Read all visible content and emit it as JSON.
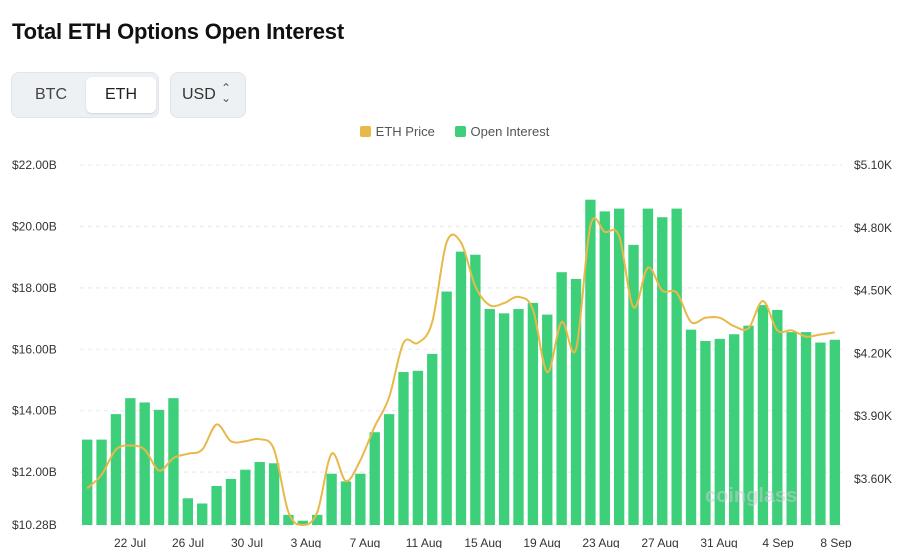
{
  "title": "Total ETH Options Open Interest",
  "toggle": {
    "options": [
      "BTC",
      "ETH"
    ],
    "selected": "ETH"
  },
  "currency_select": {
    "value": "USD"
  },
  "legend": {
    "price": "ETH Price",
    "oi": "Open Interest"
  },
  "colors": {
    "bars": "#3ecf7a",
    "price_line": "#e8b949",
    "grid": "#e6e8eb"
  },
  "watermark": "coinglass",
  "chart_data": {
    "type": "bar",
    "x_tick_labels": [
      "22 Jul",
      "26 Jul",
      "30 Jul",
      "3 Aug",
      "7 Aug",
      "11 Aug",
      "15 Aug",
      "19 Aug",
      "23 Aug",
      "27 Aug",
      "31 Aug",
      "4 Sep",
      "8 Sep"
    ],
    "left_axis": {
      "label": "",
      "ticks": [
        "$22.00B",
        "$20.00B",
        "$18.00B",
        "$16.00B",
        "$14.00B",
        "$12.00B",
        "$10.28B"
      ],
      "range": [
        10.28,
        22.0
      ]
    },
    "right_axis": {
      "label": "",
      "ticks": [
        "$5.10K",
        "$4.80K",
        "$4.50K",
        "$4.20K",
        "$3.90K",
        "$3.60K"
      ],
      "range": [
        3.38,
        5.1
      ]
    },
    "grid": true,
    "legend_position": "top-center",
    "series": [
      {
        "name": "Open Interest",
        "type": "bar",
        "axis": "left",
        "unit": "$B",
        "values": [
          13.06,
          13.06,
          13.89,
          14.41,
          14.27,
          14.03,
          14.41,
          11.15,
          10.98,
          11.55,
          11.78,
          12.08,
          12.33,
          12.29,
          10.61,
          10.42,
          10.61,
          11.95,
          11.7,
          11.95,
          13.3,
          13.89,
          15.26,
          15.3,
          15.85,
          17.88,
          19.18,
          19.08,
          17.31,
          17.17,
          17.31,
          17.51,
          17.13,
          18.51,
          18.29,
          20.87,
          20.49,
          20.58,
          19.4,
          20.58,
          20.3,
          20.58,
          16.64,
          16.27,
          16.34,
          16.49,
          16.77,
          17.44,
          17.28,
          16.56,
          16.56,
          16.22,
          16.31
        ]
      },
      {
        "name": "ETH Price",
        "type": "line",
        "axis": "right",
        "unit": "$K",
        "values": [
          3.555,
          3.62,
          3.74,
          3.76,
          3.74,
          3.64,
          3.7,
          3.72,
          3.74,
          3.86,
          3.78,
          3.78,
          3.79,
          3.74,
          3.44,
          3.38,
          3.44,
          3.72,
          3.59,
          3.69,
          3.85,
          3.99,
          4.25,
          4.25,
          4.35,
          4.73,
          4.73,
          4.52,
          4.43,
          4.44,
          4.47,
          4.41,
          4.11,
          4.35,
          4.22,
          4.81,
          4.78,
          4.76,
          4.42,
          4.61,
          4.5,
          4.49,
          4.35,
          4.37,
          4.37,
          4.33,
          4.32,
          4.45,
          4.31,
          4.31,
          4.28,
          4.29,
          4.3
        ]
      }
    ]
  }
}
